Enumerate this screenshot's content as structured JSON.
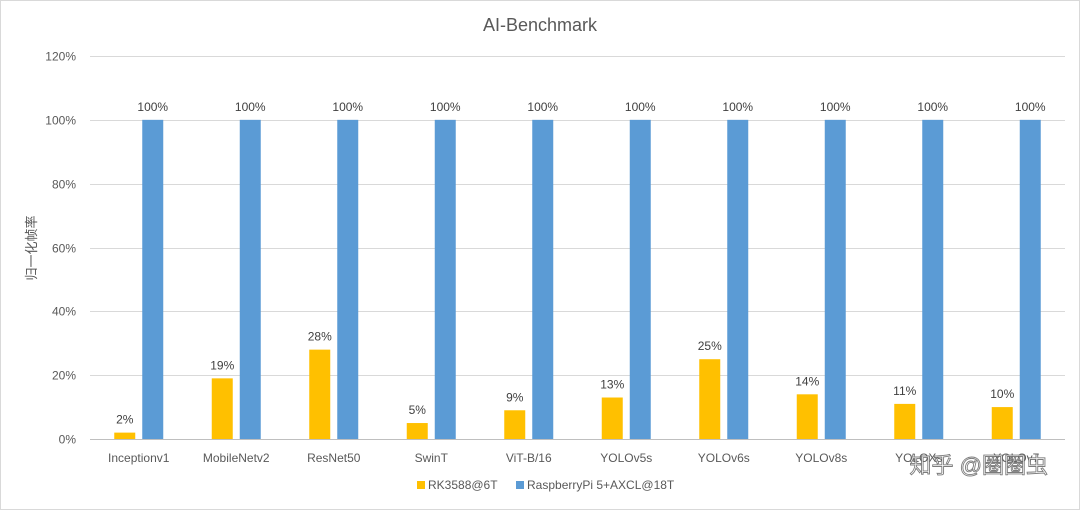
{
  "chart_data": {
    "type": "bar",
    "title": "AI-Benchmark",
    "xlabel": "",
    "ylabel": "归一化帧率",
    "ylim": [
      0,
      1.2
    ],
    "yticks": [
      "0%",
      "20%",
      "40%",
      "60%",
      "80%",
      "100%",
      "120%"
    ],
    "grid": true,
    "legend_position": "bottom",
    "categories": [
      "Inceptionv1",
      "MobileNetv2",
      "ResNet50",
      "SwinT",
      "ViT-B/16",
      "YOLOv5s",
      "YOLOv6s",
      "YOLOv8s",
      "YOLOXs",
      "YOLOv7"
    ],
    "series": [
      {
        "name": "RK3588@6T",
        "color": "#ffc000",
        "values": [
          0.02,
          0.19,
          0.28,
          0.05,
          0.09,
          0.13,
          0.25,
          0.14,
          0.11,
          0.1
        ],
        "labels": [
          "2%",
          "19%",
          "28%",
          "5%",
          "9%",
          "13%",
          "25%",
          "14%",
          "11%",
          "10%"
        ]
      },
      {
        "name": "RaspberryPi 5+AXCL@18T",
        "color": "#5b9bd5",
        "values": [
          1.0,
          1.0,
          1.0,
          1.0,
          1.0,
          1.0,
          1.0,
          1.0,
          1.0,
          1.0
        ],
        "labels": [
          "100%",
          "100%",
          "100%",
          "100%",
          "100%",
          "100%",
          "100%",
          "100%",
          "100%",
          "100%"
        ]
      }
    ]
  },
  "watermark": "知乎 @圈圈虫"
}
